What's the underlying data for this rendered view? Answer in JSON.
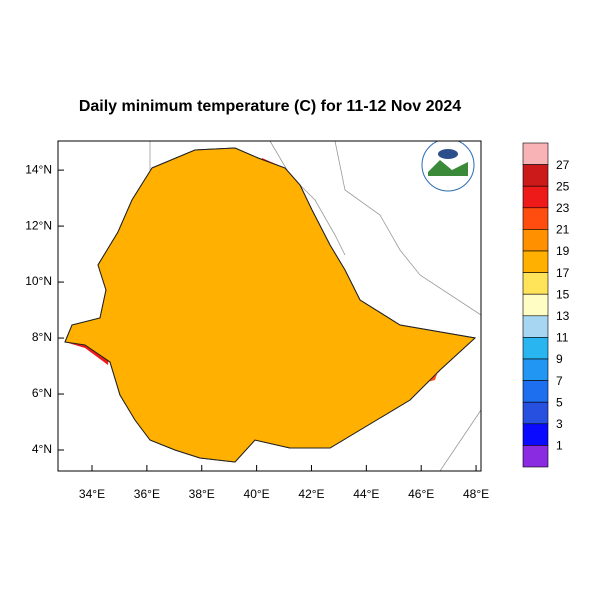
{
  "title": "Daily minimum temperature (C) for 11-12 Nov 2024",
  "map": {
    "xlim": [
      32.76,
      48.18
    ],
    "ylim": [
      3.25,
      15.04
    ],
    "xticks": [
      {
        "value": 34,
        "label": "34°E"
      },
      {
        "value": 36,
        "label": "36°E"
      },
      {
        "value": 38,
        "label": "38°E"
      },
      {
        "value": 40,
        "label": "40°E"
      },
      {
        "value": 42,
        "label": "42°E"
      },
      {
        "value": 44,
        "label": "44°E"
      },
      {
        "value": 46,
        "label": "46°E"
      },
      {
        "value": 48,
        "label": "48°E"
      }
    ],
    "yticks": [
      {
        "value": 4,
        "label": "4°N"
      },
      {
        "value": 6,
        "label": "6°N"
      },
      {
        "value": 8,
        "label": "8°N"
      },
      {
        "value": 10,
        "label": "10°N"
      },
      {
        "value": 12,
        "label": "12°N"
      },
      {
        "value": 14,
        "label": "14°N"
      }
    ]
  },
  "colorbar": {
    "colors": [
      "#f7b3b5",
      "#cc1a1a",
      "#ee1a1a",
      "#ff4d10",
      "#ff9000",
      "#ffb000",
      "#ffe45a",
      "#fffcc4",
      "#a6d6f2",
      "#29b6f0",
      "#2196f3",
      "#1e6ef0",
      "#2850e0",
      "#0a0aff",
      "#8a2be2"
    ],
    "labels": [
      27,
      25,
      23,
      21,
      19,
      17,
      15,
      13,
      11,
      9,
      7,
      5,
      3,
      1
    ]
  }
}
